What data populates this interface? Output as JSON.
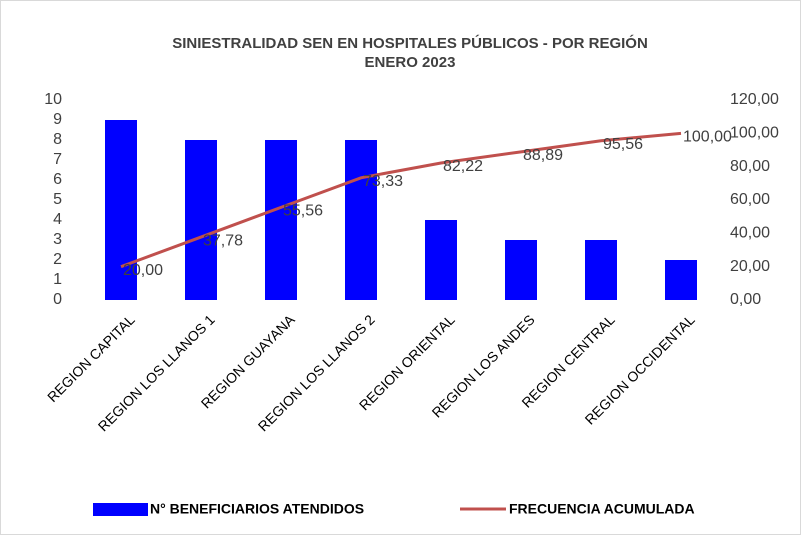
{
  "chart_data": {
    "type": "bar-line",
    "title": [
      "SINIESTRALIDAD SEN EN HOSPITALES PÚBLICOS - POR REGIÓN",
      "ENERO 2023"
    ],
    "categories": [
      "REGION CAPITAL",
      "REGION LOS LLANOS 1",
      "REGION GUAYANA",
      "REGION LOS LLANOS 2",
      "REGION ORIENTAL",
      "REGION LOS ANDES",
      "REGION CENTRAL",
      "REGION OCCIDENTAL"
    ],
    "series": [
      {
        "name": "N° BENEFICIARIOS ATENDIDOS",
        "color": "#0000ff",
        "type": "bar",
        "values": [
          9,
          8,
          8,
          8,
          4,
          3,
          3,
          2
        ]
      },
      {
        "name": "FRECUENCIA ACUMULADA",
        "color": "#c0504d",
        "type": "line",
        "axis": "y2",
        "values": [
          20,
          37.78,
          55.56,
          73.33,
          82.22,
          88.89,
          95.56,
          100
        ],
        "value_labels": [
          "20,00",
          "37,78",
          "55,56",
          "73,33",
          "82,22",
          "88,89",
          "95,56",
          "100,00"
        ]
      }
    ],
    "ylim": [
      0,
      10
    ],
    "yticks": [
      0,
      1,
      2,
      3,
      4,
      5,
      6,
      7,
      8,
      9,
      10
    ],
    "y2lim": [
      0,
      120
    ],
    "y2ticks": [
      {
        "value": 0,
        "label": "0,00"
      },
      {
        "value": 20,
        "label": "20,00"
      },
      {
        "value": 40,
        "label": "40,00"
      },
      {
        "value": 60,
        "label": "60,00"
      },
      {
        "value": 80,
        "label": "80,00"
      },
      {
        "value": 100,
        "label": "100,00"
      },
      {
        "value": 120,
        "label": "120,00"
      }
    ],
    "legend": "bottom"
  }
}
